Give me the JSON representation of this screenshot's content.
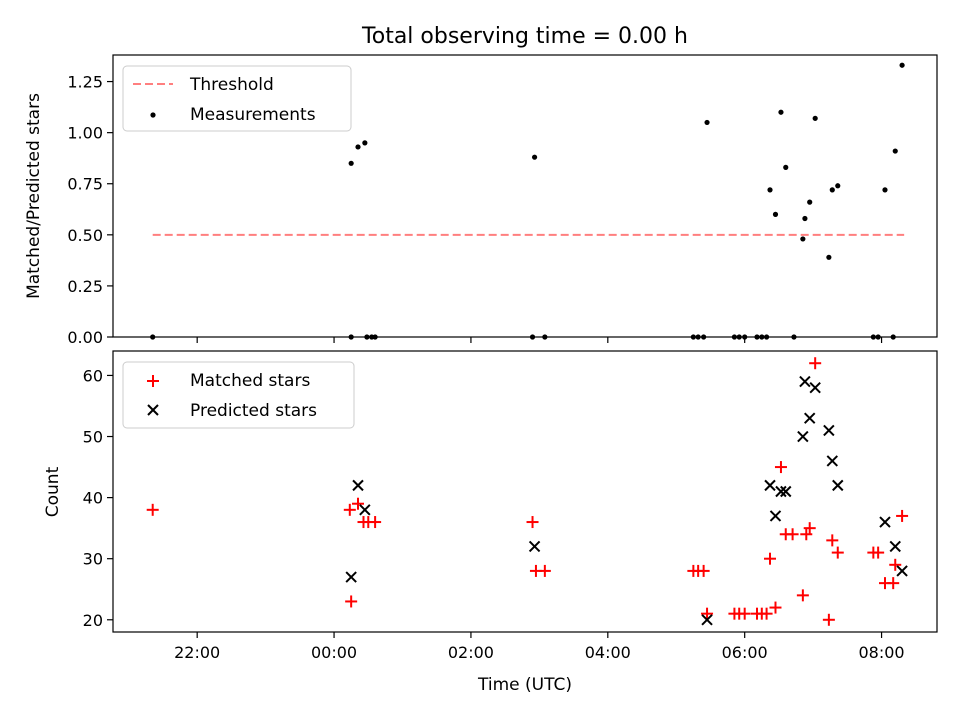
{
  "chart_data": {
    "type": "scatter",
    "title": "Total observing time = 0.00 h",
    "x_axis": {
      "label": "Time (UTC)",
      "ticks": [
        {
          "t": -2.0,
          "label": "22:00"
        },
        {
          "t": 0.0,
          "label": "00:00"
        },
        {
          "t": 2.0,
          "label": "02:00"
        },
        {
          "t": 4.0,
          "label": "04:00"
        },
        {
          "t": 6.0,
          "label": "06:00"
        },
        {
          "t": 8.0,
          "label": "08:00"
        }
      ],
      "range": [
        -3.23,
        8.81
      ]
    },
    "panels": [
      {
        "ylabel": "Matched/Predicted stars",
        "ylim": [
          0,
          1.38
        ],
        "yticks": [
          "0.00",
          "0.25",
          "0.50",
          "0.75",
          "1.00",
          "1.25"
        ],
        "legend": {
          "placement": "upper-left",
          "entries": [
            "Threshold",
            "Measurements"
          ]
        },
        "threshold": {
          "name": "Threshold",
          "value": 0.5,
          "x_range": [
            -2.65,
            8.33
          ],
          "color": "#ff7f7f",
          "style": "dashed"
        },
        "series": [
          {
            "name": "Measurements",
            "marker": "dot",
            "color": "#000000",
            "points": [
              [
                -2.65,
                0.0
              ],
              [
                0.25,
                0.85
              ],
              [
                0.35,
                0.93
              ],
              [
                0.45,
                0.95
              ],
              [
                0.25,
                0.0
              ],
              [
                0.48,
                0.0
              ],
              [
                0.55,
                0.0
              ],
              [
                0.6,
                0.0
              ],
              [
                2.93,
                0.88
              ],
              [
                2.9,
                0.0
              ],
              [
                3.08,
                0.0
              ],
              [
                5.25,
                0.0
              ],
              [
                5.32,
                0.0
              ],
              [
                5.4,
                0.0
              ],
              [
                5.45,
                1.05
              ],
              [
                5.85,
                0.0
              ],
              [
                5.92,
                0.0
              ],
              [
                6.0,
                0.0
              ],
              [
                6.18,
                0.0
              ],
              [
                6.25,
                0.0
              ],
              [
                6.32,
                0.0
              ],
              [
                6.37,
                0.72
              ],
              [
                6.45,
                0.6
              ],
              [
                6.53,
                1.1
              ],
              [
                6.6,
                0.83
              ],
              [
                6.72,
                0.0
              ],
              [
                6.85,
                0.48
              ],
              [
                6.88,
                0.58
              ],
              [
                6.95,
                0.66
              ],
              [
                7.03,
                1.07
              ],
              [
                7.23,
                0.39
              ],
              [
                7.28,
                0.72
              ],
              [
                7.36,
                0.74
              ],
              [
                7.88,
                0.0
              ],
              [
                7.95,
                0.0
              ],
              [
                8.05,
                0.72
              ],
              [
                8.17,
                0.0
              ],
              [
                8.2,
                0.91
              ],
              [
                8.3,
                1.33
              ]
            ]
          }
        ]
      },
      {
        "ylabel": "Count",
        "ylim": [
          18,
          64
        ],
        "yticks": [
          "20",
          "30",
          "40",
          "50",
          "60"
        ],
        "legend": {
          "placement": "upper-left",
          "entries": [
            "Matched stars",
            "Predicted stars"
          ]
        },
        "series": [
          {
            "name": "Matched stars",
            "marker": "plus",
            "color": "#ff0000",
            "points": [
              [
                -2.65,
                38
              ],
              [
                0.23,
                38
              ],
              [
                0.25,
                23
              ],
              [
                0.35,
                39
              ],
              [
                0.43,
                36
              ],
              [
                0.5,
                36
              ],
              [
                0.6,
                36
              ],
              [
                2.9,
                36
              ],
              [
                2.95,
                28
              ],
              [
                3.08,
                28
              ],
              [
                5.25,
                28
              ],
              [
                5.32,
                28
              ],
              [
                5.4,
                28
              ],
              [
                5.45,
                21
              ],
              [
                5.85,
                21
              ],
              [
                5.92,
                21
              ],
              [
                6.0,
                21
              ],
              [
                6.18,
                21
              ],
              [
                6.25,
                21
              ],
              [
                6.32,
                21
              ],
              [
                6.37,
                30
              ],
              [
                6.45,
                22
              ],
              [
                6.53,
                45
              ],
              [
                6.6,
                34
              ],
              [
                6.7,
                34
              ],
              [
                6.85,
                24
              ],
              [
                6.9,
                34
              ],
              [
                6.95,
                35
              ],
              [
                7.03,
                62
              ],
              [
                7.23,
                20
              ],
              [
                7.28,
                33
              ],
              [
                7.36,
                31
              ],
              [
                7.88,
                31
              ],
              [
                7.95,
                31
              ],
              [
                8.05,
                26
              ],
              [
                8.17,
                26
              ],
              [
                8.2,
                29
              ],
              [
                8.3,
                37
              ]
            ]
          },
          {
            "name": "Predicted stars",
            "marker": "x",
            "color": "#000000",
            "points": [
              [
                0.25,
                27
              ],
              [
                0.35,
                42
              ],
              [
                0.45,
                38
              ],
              [
                2.93,
                32
              ],
              [
                5.45,
                20
              ],
              [
                6.37,
                42
              ],
              [
                6.45,
                37
              ],
              [
                6.53,
                41
              ],
              [
                6.6,
                41
              ],
              [
                6.85,
                50
              ],
              [
                6.88,
                59
              ],
              [
                6.95,
                53
              ],
              [
                7.03,
                58
              ],
              [
                7.23,
                51
              ],
              [
                7.28,
                46
              ],
              [
                7.36,
                42
              ],
              [
                8.05,
                36
              ],
              [
                8.2,
                32
              ],
              [
                8.3,
                28
              ]
            ]
          }
        ]
      }
    ]
  }
}
